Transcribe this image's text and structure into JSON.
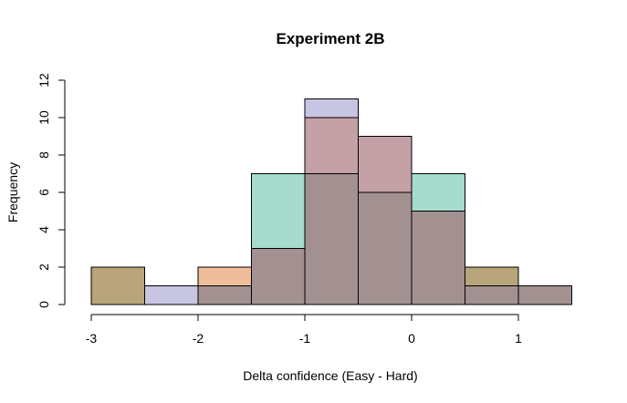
{
  "chart_data": {
    "type": "bar",
    "title": "Experiment 2B",
    "xlabel": "Delta confidence (Easy - Hard)",
    "ylabel": "Frequency",
    "xlim": [
      -3,
      1.5
    ],
    "ylim": [
      0,
      12
    ],
    "xticks": [
      -3,
      -2,
      -1,
      0,
      1
    ],
    "yticks": [
      0,
      2,
      4,
      6,
      8,
      10,
      12
    ],
    "grid": false,
    "legend": "none",
    "bin_width": 0.5,
    "bins": [
      -3,
      -2.5,
      -2,
      -1.5,
      -1,
      -0.5,
      0,
      0.5,
      1
    ],
    "overlay": [
      {
        "start": -3,
        "counts": [
          2,
          0,
          0,
          0,
          0,
          0,
          0,
          0,
          2
        ],
        "color": "#b8a57b"
      },
      {
        "start": -3,
        "counts": [
          0,
          1,
          0,
          0,
          0,
          0,
          0,
          0,
          0
        ],
        "color": "#c8c5e3"
      },
      {
        "start": -2.5,
        "counts": [
          0,
          0,
          2,
          0,
          0,
          0,
          0,
          0
        ],
        "color": "#f0bd9a"
      },
      {
        "start": -3,
        "counts": [
          0,
          0,
          0,
          7,
          11,
          0,
          0,
          7,
          0
        ],
        "color": "#a7dbce"
      },
      {
        "start": -3,
        "counts": [
          0,
          0,
          0,
          0,
          10,
          9,
          0,
          0,
          0
        ],
        "color": "#c8c5e3"
      },
      {
        "start": -3,
        "counts": [
          0,
          0,
          0,
          0,
          0,
          9,
          0,
          0,
          0
        ],
        "color": "#c4a1a6"
      }
    ],
    "segments": [
      {
        "x0": -3,
        "x1": -2.5,
        "y0": 0,
        "y1": 2,
        "color": "#b8a57b"
      },
      {
        "x0": -2.5,
        "x1": -2,
        "y0": 0,
        "y1": 1,
        "color": "#c8c5e3"
      },
      {
        "x0": -2,
        "x1": -1.5,
        "y0": 1,
        "y1": 2,
        "color": "#f0bd9a"
      },
      {
        "x0": -2,
        "x1": -1.5,
        "y0": 0,
        "y1": 1,
        "color": "#a29190"
      },
      {
        "x0": -1.5,
        "x1": -1,
        "y0": 3,
        "y1": 7,
        "color": "#a7dbce"
      },
      {
        "x0": -1.5,
        "x1": -1,
        "y0": 0,
        "y1": 3,
        "color": "#a29190"
      },
      {
        "x0": -1,
        "x1": -0.5,
        "y0": 10,
        "y1": 11,
        "color": "#c8c5e3"
      },
      {
        "x0": -1,
        "x1": -0.5,
        "y0": 7,
        "y1": 10,
        "color": "#c4a1a6"
      },
      {
        "x0": -1,
        "x1": -0.5,
        "y0": 0,
        "y1": 7,
        "color": "#a29190"
      },
      {
        "x0": -0.5,
        "x1": 0,
        "y0": 6,
        "y1": 9,
        "color": "#c4a1a6"
      },
      {
        "x0": -0.5,
        "x1": 0,
        "y0": 0,
        "y1": 6,
        "color": "#a29190"
      },
      {
        "x0": 0,
        "x1": 0.5,
        "y0": 5,
        "y1": 7,
        "color": "#a7dbce"
      },
      {
        "x0": 0,
        "x1": 0.5,
        "y0": 0,
        "y1": 5,
        "color": "#a29190"
      },
      {
        "x0": 0.5,
        "x1": 1,
        "y0": 1,
        "y1": 2,
        "color": "#b8a57b"
      },
      {
        "x0": 0.5,
        "x1": 1,
        "y0": 0,
        "y1": 1,
        "color": "#a29190"
      },
      {
        "x0": 1,
        "x1": 1.5,
        "y0": 0,
        "y1": 1,
        "color": "#a29190"
      }
    ]
  }
}
